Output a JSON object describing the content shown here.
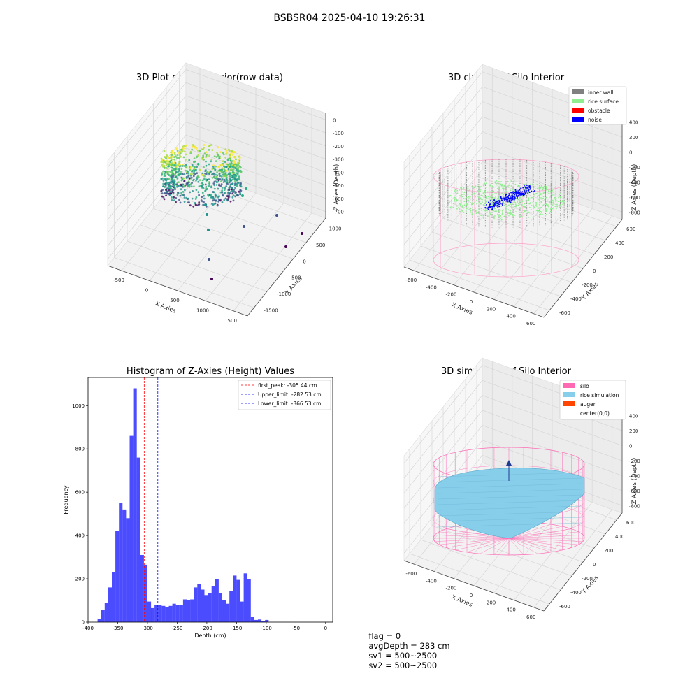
{
  "suptitle": "BSBSR04 2025-04-10 19:26:31",
  "status": {
    "flag": "flag = 0",
    "avg_depth": "avgDepth = 283 cm",
    "sv1": "sv1 = 500~2500",
    "sv2": "sv2 = 500~2500"
  },
  "colors": {
    "inner_wall": "#808080",
    "rice_surface": "#90ee90",
    "obstacle": "#ff0000",
    "noise": "#0000ff",
    "silo": "#ff69b4",
    "rice_simulation": "#87ceeb",
    "auger": "#ff4500",
    "histogram_bar": "#0000ff",
    "first_peak_line": "#ff0000",
    "limit_lines": "#0000ff"
  },
  "chart_data": [
    {
      "type": "scatter",
      "kind": "3d-point-cloud",
      "title": "3D Plot of Silo Interior(row data)",
      "xlabel": "X Axies",
      "ylabel": "Y Axies",
      "zlabel": "Z Axies (Depth)",
      "xticks": [
        "-500",
        "0",
        "500",
        "1000",
        "1500"
      ],
      "yticks": [
        "1000",
        "500",
        "0",
        "-500",
        "-1000",
        "-1500"
      ],
      "zticks": [
        "0",
        "-100",
        "-200",
        "-300",
        "-400",
        "-500",
        "-600",
        "-700"
      ],
      "xlim": [
        -600,
        1600
      ],
      "ylim": [
        -1500,
        1000
      ],
      "zlim": [
        -750,
        0
      ],
      "colormap": "viridis"
    },
    {
      "type": "scatter",
      "kind": "3d-classified-point-cloud",
      "title": "3D classify of Silo Interior",
      "xlabel": "X Axies",
      "ylabel": "Y Axies",
      "zlabel": "Z Axies (Depth)",
      "xticks": [
        "-600",
        "-400",
        "-200",
        "0",
        "200",
        "400",
        "600"
      ],
      "yticks": [
        "600",
        "400",
        "200",
        "0",
        "-200",
        "-400",
        "-600"
      ],
      "zticks": [
        "400",
        "200",
        "0",
        "-200",
        "-400",
        "-600",
        "-800"
      ],
      "xlim": [
        -650,
        650
      ],
      "ylim": [
        -650,
        650
      ],
      "zlim": [
        -900,
        450
      ],
      "legend_placement": "top-right",
      "legend": [
        {
          "label": "inner wall",
          "color": "#808080"
        },
        {
          "label": "rice surface",
          "color": "#90ee90"
        },
        {
          "label": "obstacle",
          "color": "#ff0000"
        },
        {
          "label": "noise",
          "color": "#0000ff"
        }
      ]
    },
    {
      "type": "bar",
      "kind": "histogram",
      "title": "Histogram of Z-Axies (Height) Values",
      "xlabel": "Depth (cm)",
      "ylabel": "Frequency",
      "xlim": [
        -400,
        12
      ],
      "ylim": [
        0,
        1130
      ],
      "xticks": [
        -400,
        -350,
        -300,
        -250,
        -200,
        -150,
        -100,
        -50,
        0
      ],
      "yticks": [
        0,
        200,
        400,
        600,
        800,
        1000
      ],
      "bin_width": 6,
      "bin_start": -390,
      "values": [
        0,
        15,
        55,
        90,
        160,
        230,
        420,
        550,
        520,
        480,
        860,
        1080,
        760,
        310,
        265,
        95,
        65,
        80,
        80,
        75,
        70,
        75,
        85,
        80,
        80,
        105,
        100,
        105,
        160,
        175,
        150,
        125,
        135,
        165,
        200,
        135,
        100,
        85,
        145,
        215,
        195,
        95,
        225,
        200,
        25,
        10,
        12,
        5,
        10
      ],
      "legend_placement": "top-right",
      "legend": [
        {
          "label": "first_peak: -305.44 cm",
          "color": "#ff0000"
        },
        {
          "label": "Upper_limit: -282.53 cm",
          "color": "#0000ff"
        },
        {
          "label": "Lower_limit: -366.53 cm",
          "color": "#0000ff"
        }
      ],
      "vlines": [
        {
          "x": -305.44,
          "color": "#ff0000"
        },
        {
          "x": -282.53,
          "color": "#0000ff"
        },
        {
          "x": -366.53,
          "color": "#0000ff"
        }
      ]
    },
    {
      "type": "area",
      "kind": "3d-surface-simulation",
      "title": "3D simulation of Silo Interior",
      "xlabel": "X Axies",
      "ylabel": "Y Axies",
      "zlabel": "Z Axies (Depth)",
      "xticks": [
        "-600",
        "-400",
        "-200",
        "0",
        "200",
        "400",
        "600"
      ],
      "yticks": [
        "600",
        "400",
        "200",
        "0",
        "-200",
        "-400",
        "-600"
      ],
      "zticks": [
        "400",
        "200",
        "0",
        "-200",
        "-400",
        "-600",
        "-800"
      ],
      "xlim": [
        -650,
        650
      ],
      "ylim": [
        -650,
        650
      ],
      "zlim": [
        -900,
        450
      ],
      "legend_placement": "top-right",
      "legend": [
        {
          "label": "silo",
          "color": "#ff69b4"
        },
        {
          "label": "rice simulation",
          "color": "#87ceeb"
        },
        {
          "label": "auger",
          "color": "#ff4500"
        },
        {
          "label": "center(0,0)",
          "color": ""
        }
      ]
    }
  ]
}
